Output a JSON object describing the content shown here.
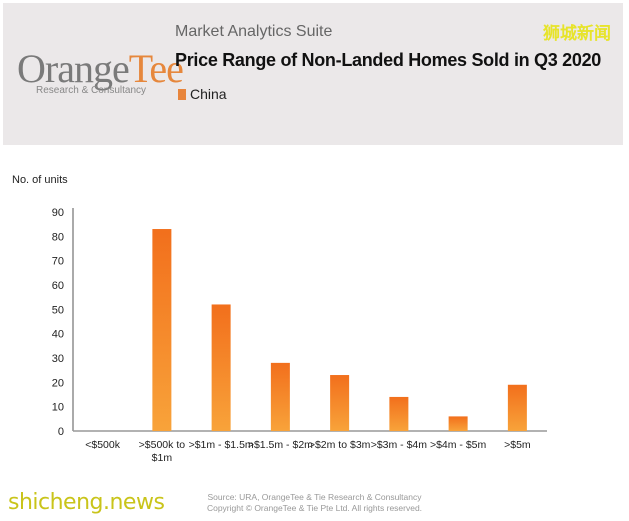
{
  "header": {
    "logo": "OrangeTee",
    "logo_main": "Orange",
    "logo_accent": "Tee",
    "logo_sub": "Research & Consultancy",
    "suite": "Market Analytics Suite",
    "title": "Price Range of Non-Landed Homes Sold in Q3 2020",
    "legend": "China"
  },
  "watermarks": {
    "cn": "狮城新闻",
    "en": "shicheng.news"
  },
  "footer": {
    "source": "Source: URA, OrangeTee & Tie Research & Consultancy",
    "copyright": "Copyright © OrangeTee & Tie Pte Ltd. All rights reserved."
  },
  "chart_data": {
    "type": "bar",
    "title": "Price Range of Non-Landed Homes Sold in Q3 2020",
    "ylabel": "No. of units",
    "xlabel": "",
    "categories": [
      "<$500k",
      ">$500k to $1m",
      ">$1m - $1.5m",
      ">$1.5m - $2m",
      ">$2m to $3m",
      ">$3m - $4m",
      ">$4m - $5m",
      ">$5m"
    ],
    "series": [
      {
        "name": "China",
        "values": [
          0,
          83,
          52,
          28,
          23,
          14,
          6,
          19
        ]
      }
    ],
    "ylim": [
      0,
      90
    ],
    "yticks": [
      0,
      10,
      20,
      30,
      40,
      50,
      60,
      70,
      80,
      90
    ],
    "grid": false,
    "legend": "top-left",
    "colors": {
      "bar_top": "#f26f1c",
      "bar_bottom": "#f8a33a"
    }
  }
}
